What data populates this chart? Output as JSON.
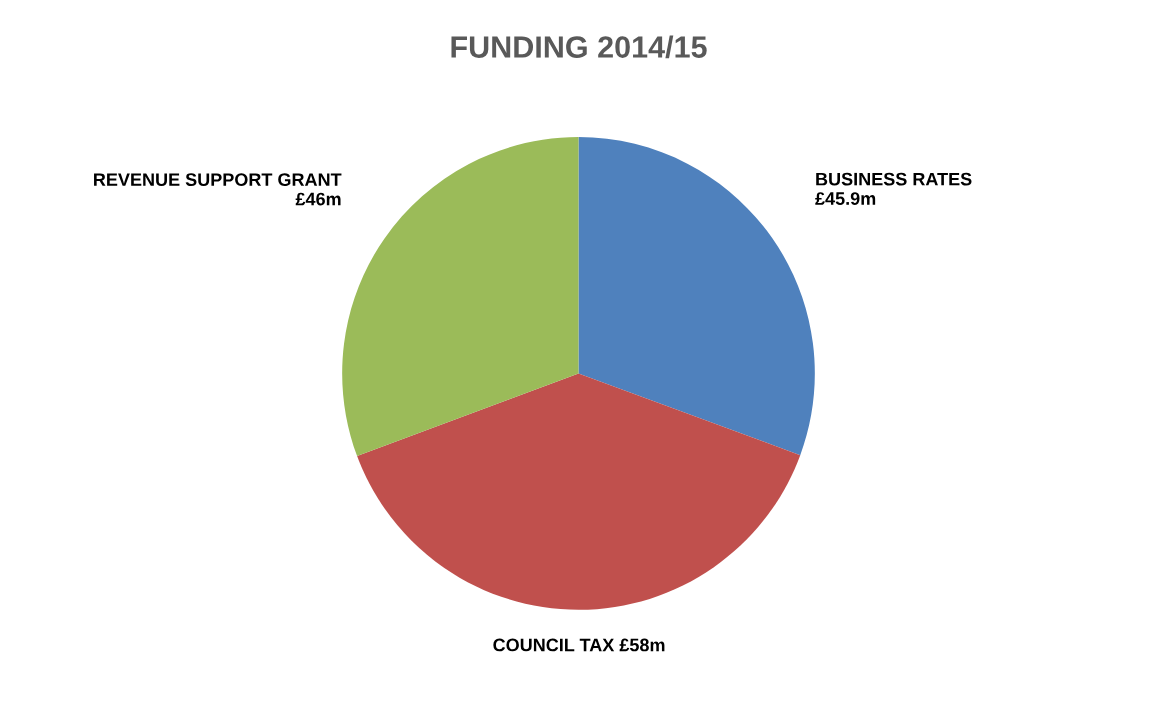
{
  "chart_data": {
    "type": "pie",
    "title": "FUNDING 2014/15",
    "categories": [
      "BUSINESS RATES",
      "COUNCIL TAX",
      "REVENUE SUPPORT GRANT"
    ],
    "values": [
      45.9,
      58,
      46
    ],
    "value_labels": [
      "£45.9m",
      "£58m",
      "£46m"
    ],
    "colors": [
      "#4f81bd",
      "#c0504d",
      "#9bbb59"
    ],
    "legend": false
  }
}
